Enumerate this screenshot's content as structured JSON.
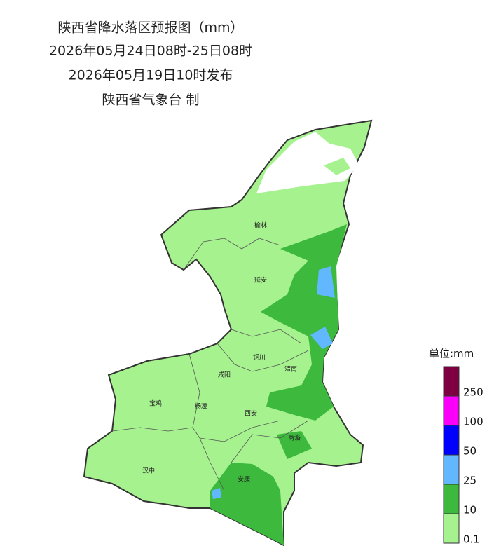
{
  "header": {
    "title": "陕西省降水落区预报图（mm）",
    "period": "2026年05月24日08时-25日08时",
    "issued": "2026年05月19日10时发布",
    "issuer": "陕西省气象台 制"
  },
  "map": {
    "cities": [
      "榆林",
      "延安",
      "铜川",
      "渭南",
      "咸阳",
      "宝鸡",
      "杨凌",
      "西安",
      "商洛",
      "汉中",
      "安康"
    ]
  },
  "legend": {
    "title": "单位:mm",
    "ticks": [
      0.1,
      10,
      25,
      50,
      100,
      250
    ],
    "colors": [
      "#a6f28f",
      "#3dba3d",
      "#61b8ff",
      "#0000fe",
      "#fa00fa",
      "#7f0040"
    ]
  }
}
